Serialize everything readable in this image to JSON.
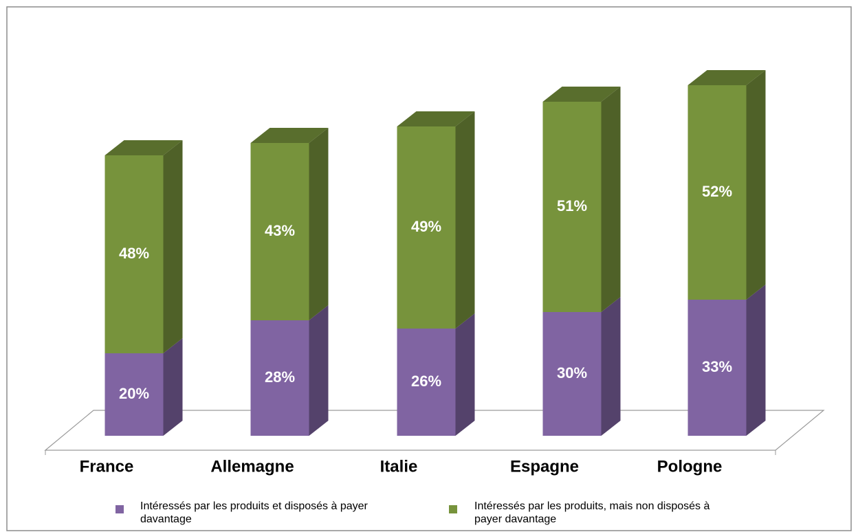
{
  "chart_data": {
    "type": "bar",
    "stacked": true,
    "categories": [
      "France",
      "Allemagne",
      "Italie",
      "Espagne",
      "Pologne"
    ],
    "series": [
      {
        "name": "Intéressés par les produits et disposés à payer davantage",
        "color": "#8064a2",
        "values": [
          20,
          28,
          26,
          30,
          33
        ],
        "value_labels": [
          "20%",
          "28%",
          "26%",
          "30%",
          "33%"
        ]
      },
      {
        "name": "Intéressés par les produits, mais non disposés à payer davantage",
        "color": "#77933c",
        "values": [
          48,
          43,
          49,
          51,
          52
        ],
        "value_labels": [
          "48%",
          "43%",
          "49%",
          "51%",
          "52%"
        ]
      }
    ]
  }
}
